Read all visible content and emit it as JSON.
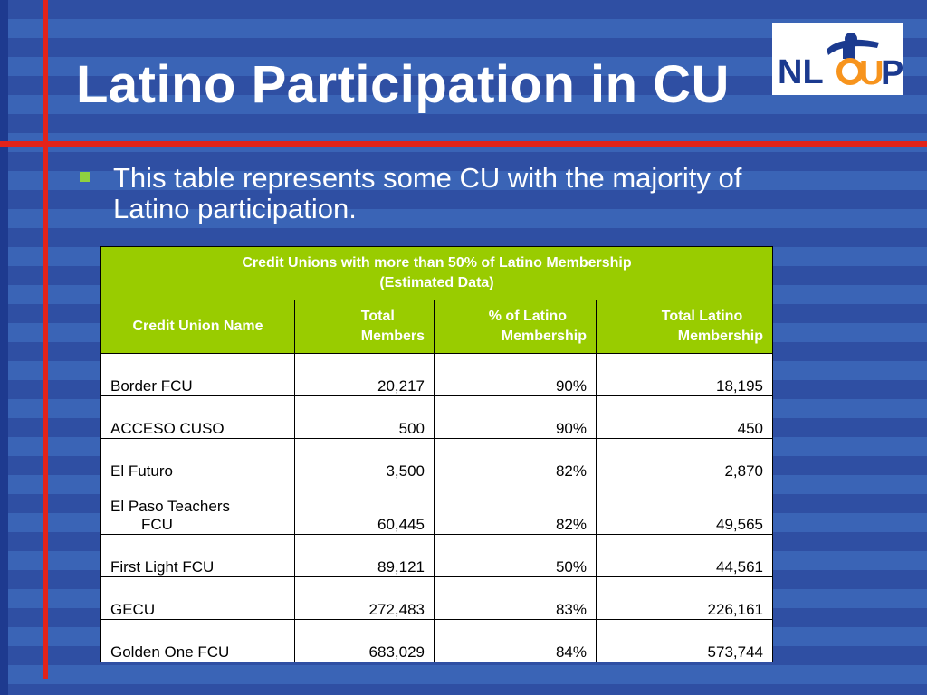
{
  "slide": {
    "title": "Latino Participation in CU",
    "bullet": "This table represents some CU with the majority of Latino participation."
  },
  "logo": {
    "text": "NLCUP",
    "colors": {
      "blue": "#1b3a8f",
      "orange": "#f7941d"
    }
  },
  "table": {
    "caption_line1": "Credit Unions with more than 50% of Latino Membership",
    "caption_line2": "(Estimated Data)",
    "headers": {
      "name": "Credit Union Name",
      "total_1": "Total",
      "total_2": "Members",
      "pct_1": "% of Latino",
      "pct_2": "Membership",
      "latino_1": "Total Latino",
      "latino_2": "Membership"
    },
    "rows": [
      {
        "name": "Border FCU",
        "name2": "",
        "total": "20,217",
        "pct": "90%",
        "latino": "18,195"
      },
      {
        "name": "ACCESO CUSO",
        "name2": "",
        "total": "500",
        "pct": "90%",
        "latino": "450"
      },
      {
        "name": "El Futuro",
        "name2": "",
        "total": "3,500",
        "pct": "82%",
        "latino": "2,870"
      },
      {
        "name": "El Paso Teachers",
        "name2": "FCU",
        "total": "60,445",
        "pct": "82%",
        "latino": "49,565"
      },
      {
        "name": "First Light FCU",
        "name2": "",
        "total": "89,121",
        "pct": "50%",
        "latino": "44,561"
      },
      {
        "name": "GECU",
        "name2": "",
        "total": "272,483",
        "pct": "83%",
        "latino": "226,161"
      },
      {
        "name": "Golden One FCU",
        "name2": "",
        "total": "683,029",
        "pct": "84%",
        "latino": "573,744"
      }
    ]
  },
  "colors": {
    "background_dark": "#2f4fa3",
    "background_light": "#3a64b6",
    "accent_red": "#e2231a",
    "header_green": "#99cc00",
    "bullet_green": "#8fd13f"
  }
}
